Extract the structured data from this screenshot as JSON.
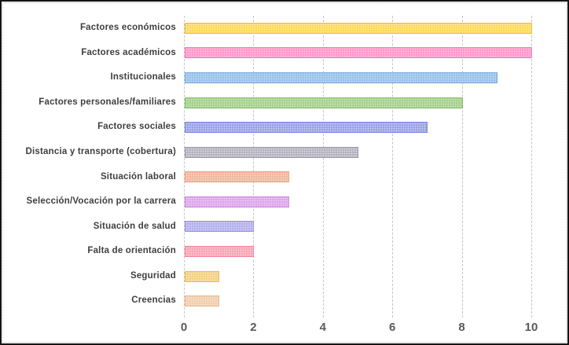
{
  "chart_data": {
    "type": "bar",
    "orientation": "horizontal",
    "title": "",
    "xlabel": "",
    "ylabel": "",
    "categories": [
      "Factores económicos",
      "Factores académicos",
      "Institucionales",
      "Factores personales/familiares",
      "Factores sociales",
      "Distancia y transporte (cobertura)",
      "Situación laboral",
      "Selección/Vocación por la carrera",
      "Situación de salud",
      "Falta de orientación",
      "Seguridad",
      "Creencias"
    ],
    "values": [
      10,
      10,
      9,
      8,
      7,
      5,
      3,
      3,
      2,
      2,
      1,
      1
    ],
    "bar_fill_colors": [
      "#FED34F",
      "#FB8CC3",
      "#8ABAE6",
      "#97CB7D",
      "#8E97E7",
      "#ACAAB8",
      "#F4AC92",
      "#D99BEB",
      "#ABA6EA",
      "#F899AC",
      "#F1CB77",
      "#EFC8A1"
    ],
    "bar_border_colors": [
      "#EFBE35",
      "#F878B5",
      "#77ABDE",
      "#86BE6A",
      "#7B86E0",
      "#9C9AAC",
      "#EF9C7C",
      "#CC85E3",
      "#9892E2",
      "#F5859B",
      "#E8BC5D",
      "#E8B88A"
    ],
    "xlim": [
      0,
      10
    ],
    "x_ticks": [
      0,
      2,
      4,
      6,
      8,
      10
    ],
    "x_tick_labels": [
      "0",
      "2",
      "4",
      "6",
      "8",
      "10"
    ],
    "grid": true,
    "legend": false
  },
  "styles": {
    "category_label_color": "#3f3f3f",
    "axis_label_color": "#595959",
    "gridline_color": "#c3c3c3",
    "frame_border_color": "#141414",
    "inner_border_color": "#bfbfbf",
    "background": "#ffffff"
  }
}
